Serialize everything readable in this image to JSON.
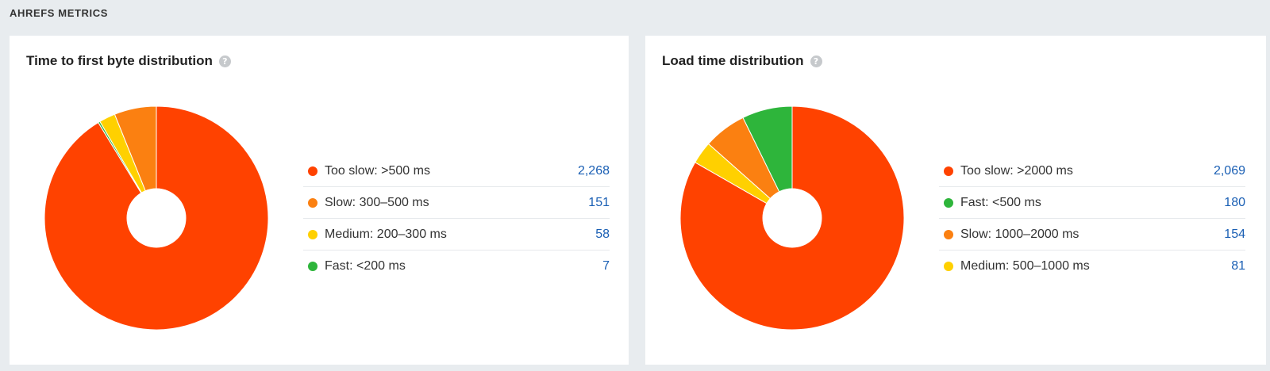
{
  "section_title": "AHREFS METRICS",
  "colors": {
    "too_slow": "#ff4200",
    "slow": "#fb8011",
    "medium": "#ffd000",
    "fast": "#2eb53b",
    "link": "#1a5fb4"
  },
  "chart_data": [
    {
      "type": "pie",
      "title": "Time to first byte distribution",
      "help_icon": "?",
      "series": [
        {
          "name": "Too slow: >500 ms",
          "value": 2268,
          "display": "2,268",
          "color": "#ff4200"
        },
        {
          "name": "Slow: 300–500 ms",
          "value": 151,
          "display": "151",
          "color": "#fb8011"
        },
        {
          "name": "Medium: 200–300 ms",
          "value": 58,
          "display": "58",
          "color": "#ffd000"
        },
        {
          "name": "Fast: <200 ms",
          "value": 7,
          "display": "7",
          "color": "#2eb53b"
        }
      ]
    },
    {
      "type": "pie",
      "title": "Load time distribution",
      "help_icon": "?",
      "series": [
        {
          "name": "Too slow: >2000 ms",
          "value": 2069,
          "display": "2,069",
          "color": "#ff4200"
        },
        {
          "name": "Fast: <500 ms",
          "value": 180,
          "display": "180",
          "color": "#2eb53b"
        },
        {
          "name": "Slow: 1000–2000 ms",
          "value": 154,
          "display": "154",
          "color": "#fb8011"
        },
        {
          "name": "Medium: 500–1000 ms",
          "value": 81,
          "display": "81",
          "color": "#ffd000"
        }
      ]
    }
  ]
}
